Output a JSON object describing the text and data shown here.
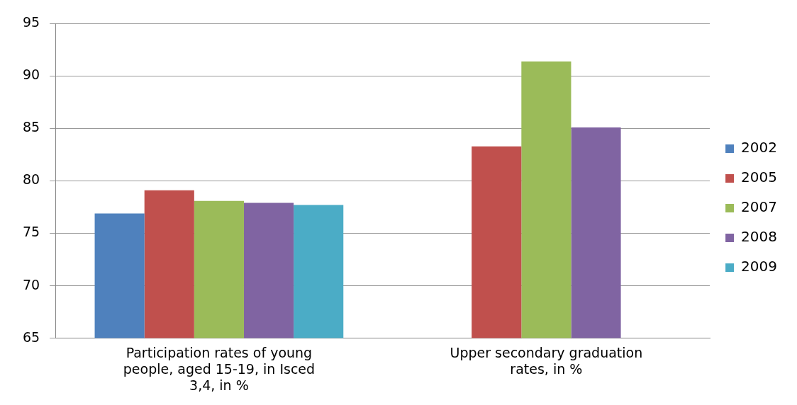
{
  "chart_data": {
    "type": "bar",
    "categories": [
      "Participation rates of young people, aged 15-19, in Isced 3,4, in %",
      "Upper secondary graduation rates, in %"
    ],
    "series": [
      {
        "name": "2002",
        "color": "#4f81bd",
        "values": [
          76.9,
          null
        ]
      },
      {
        "name": "2005",
        "color": "#c0504d",
        "values": [
          79.1,
          83.3
        ]
      },
      {
        "name": "2007",
        "color": "#9bbb59",
        "values": [
          78.1,
          91.4
        ]
      },
      {
        "name": "2008",
        "color": "#8064a2",
        "values": [
          77.9,
          85.1
        ]
      },
      {
        "name": "2009",
        "color": "#4bacc6",
        "values": [
          77.7,
          null
        ]
      }
    ],
    "ylim": [
      65,
      95
    ],
    "yticks": [
      65,
      70,
      75,
      80,
      85,
      90,
      95
    ],
    "grid": "y",
    "legend": "right"
  }
}
